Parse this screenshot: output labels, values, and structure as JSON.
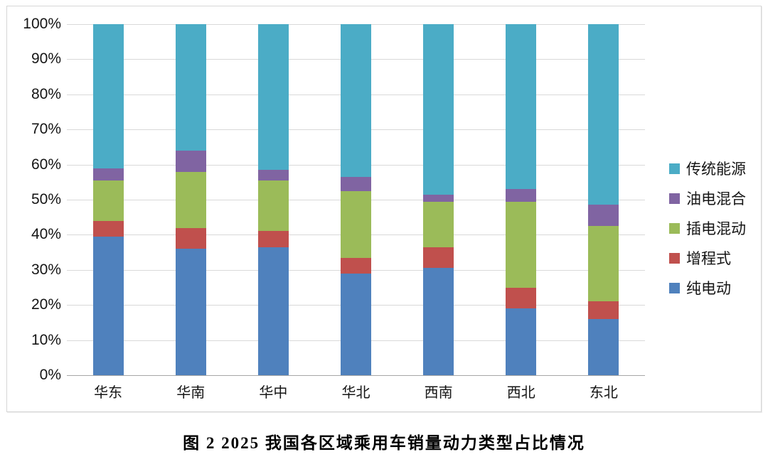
{
  "caption": "图 2 2025 我国各区域乘用车销量动力类型占比情况",
  "chart_data": {
    "type": "bar",
    "variant": "stacked-100-percent",
    "title": "",
    "xlabel": "",
    "ylabel": "",
    "categories": [
      "华东",
      "华南",
      "华中",
      "华北",
      "西南",
      "西北",
      "东北"
    ],
    "series": [
      {
        "name": "纯电动",
        "color": "#4F81BD",
        "values": [
          39.5,
          36.0,
          36.5,
          29.0,
          30.5,
          19.0,
          16.0
        ]
      },
      {
        "name": "增程式",
        "color": "#C0504D",
        "values": [
          4.5,
          6.0,
          4.5,
          4.5,
          6.0,
          6.0,
          5.0
        ]
      },
      {
        "name": "插电混动",
        "color": "#9BBB59",
        "values": [
          11.5,
          16.0,
          14.5,
          19.0,
          13.0,
          24.5,
          21.5
        ]
      },
      {
        "name": "油电混合",
        "color": "#8064A2",
        "values": [
          3.5,
          6.0,
          3.0,
          4.0,
          2.0,
          3.5,
          6.0
        ]
      },
      {
        "name": "传统能源",
        "color": "#4BACC6",
        "values": [
          41.0,
          36.0,
          41.5,
          43.5,
          48.5,
          47.0,
          51.5
        ]
      }
    ],
    "y_axis": {
      "min": 0,
      "max": 100,
      "step": 10,
      "tick_labels": [
        "0%",
        "10%",
        "20%",
        "30%",
        "40%",
        "50%",
        "60%",
        "70%",
        "80%",
        "90%",
        "100%"
      ]
    },
    "legend": {
      "position": "right",
      "entries": [
        "传统能源",
        "油电混合",
        "插电混动",
        "增程式",
        "纯电动"
      ]
    },
    "grid": {
      "horizontal": true,
      "vertical": false,
      "color": "#d9d9d9"
    }
  }
}
